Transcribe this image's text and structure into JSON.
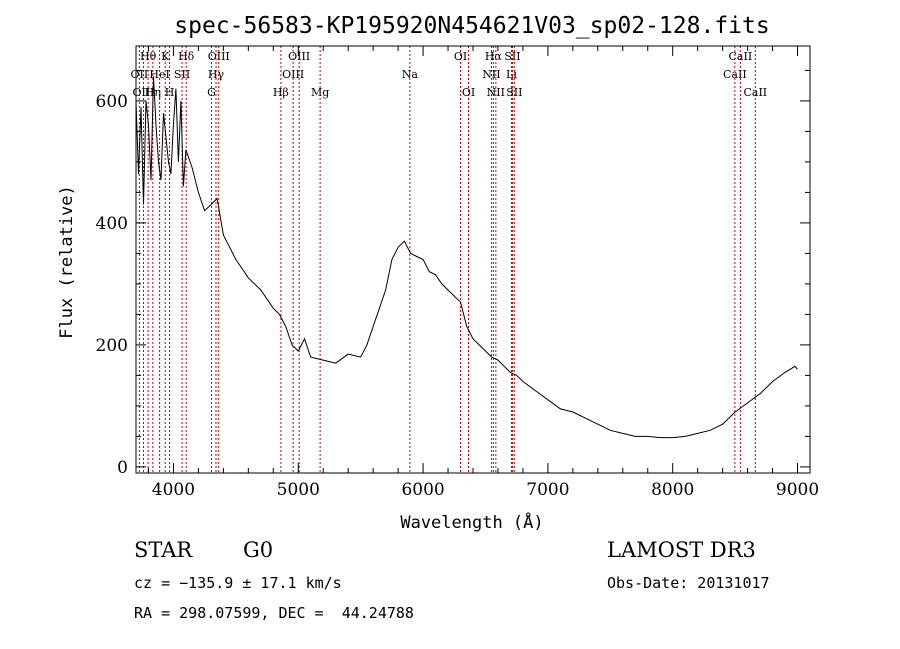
{
  "info": {
    "object_class": "STAR",
    "subclass": "G0",
    "survey": "LAMOST DR3",
    "velocity": "cz = −135.9 ± 17.1 km/s",
    "obs_date": "Obs-Date: 20131017",
    "coords": "RA = 298.07599, DEC =  44.24788"
  },
  "chart_data": {
    "type": "line",
    "title": "spec-56583-KP195920N454621V03_sp02-128.fits",
    "xlabel": "Wavelength (Å)",
    "ylabel": "Flux (relative)",
    "xlim": [
      3700,
      9100
    ],
    "ylim": [
      -10,
      690
    ],
    "x_ticks": [
      4000,
      5000,
      6000,
      7000,
      8000,
      9000
    ],
    "y_ticks": [
      0,
      200,
      400,
      600
    ],
    "grid": false,
    "line_color": "#000000",
    "marker_color": "#c00000",
    "series": [
      {
        "x": [
          3700,
          3720,
          3740,
          3760,
          3780,
          3800,
          3820,
          3840,
          3860,
          3880,
          3900,
          3920,
          3940,
          3960,
          3980,
          4000,
          4020,
          4040,
          4060,
          4080,
          4100,
          4150,
          4200,
          4250,
          4300,
          4350,
          4400,
          4500,
          4600,
          4700,
          4800,
          4850,
          4900,
          4950,
          5000,
          5050,
          5100,
          5200,
          5300,
          5400,
          5500,
          5550,
          5600,
          5650,
          5700,
          5750,
          5800,
          5850,
          5900,
          5950,
          6000,
          6050,
          6100,
          6150,
          6200,
          6250,
          6300,
          6350,
          6400,
          6450,
          6500,
          6550,
          6600,
          6650,
          6700,
          6750,
          6800,
          6900,
          7000,
          7100,
          7200,
          7300,
          7400,
          7500,
          7600,
          7700,
          7800,
          7900,
          8000,
          8100,
          8200,
          8300,
          8400,
          8500,
          8600,
          8700,
          8800,
          8900,
          8980,
          9000
        ],
        "y": [
          600,
          480,
          590,
          430,
          600,
          560,
          470,
          640,
          560,
          500,
          470,
          580,
          540,
          500,
          480,
          560,
          620,
          500,
          600,
          460,
          520,
          490,
          450,
          420,
          430,
          440,
          380,
          340,
          310,
          290,
          260,
          250,
          230,
          200,
          190,
          210,
          180,
          175,
          170,
          185,
          180,
          200,
          230,
          260,
          290,
          340,
          360,
          370,
          350,
          345,
          340,
          320,
          315,
          300,
          290,
          280,
          270,
          230,
          210,
          200,
          190,
          180,
          175,
          165,
          155,
          150,
          140,
          125,
          110,
          95,
          90,
          80,
          70,
          60,
          55,
          50,
          50,
          48,
          48,
          50,
          55,
          60,
          70,
          90,
          105,
          120,
          140,
          155,
          165,
          160
        ]
      }
    ],
    "line_markers": [
      {
        "label": "Hθ",
        "x": 3797,
        "row": 0
      },
      {
        "label": "OII",
        "x": 3727,
        "row": 1
      },
      {
        "label": "OIII",
        "x": 3760,
        "row": 2
      },
      {
        "label": "K",
        "x": 3934,
        "row": 0
      },
      {
        "label": "HeI",
        "x": 3889,
        "row": 1
      },
      {
        "label": "Hη",
        "x": 3835,
        "row": 2
      },
      {
        "label": "SII",
        "x": 4069,
        "row": 1
      },
      {
        "label": "H",
        "x": 3969,
        "row": 2
      },
      {
        "label": "Hδ",
        "x": 4102,
        "row": 0
      },
      {
        "label": "OIII",
        "x": 4363,
        "row": 0
      },
      {
        "label": "Hγ",
        "x": 4341,
        "row": 1
      },
      {
        "label": "G",
        "x": 4305,
        "row": 2
      },
      {
        "label": "OIII",
        "x": 5007,
        "row": 0
      },
      {
        "label": "OIII",
        "x": 4959,
        "row": 1
      },
      {
        "label": "Hβ",
        "x": 4861,
        "row": 2
      },
      {
        "label": "Mg",
        "x": 5175,
        "row": 2
      },
      {
        "label": "Na",
        "x": 5894,
        "row": 1
      },
      {
        "label": "OI",
        "x": 6300,
        "row": 0
      },
      {
        "label": "OI",
        "x": 6364,
        "row": 2
      },
      {
        "label": "Hα",
        "x": 6563,
        "row": 0
      },
      {
        "label": "NII",
        "x": 6548,
        "row": 1
      },
      {
        "label": "NII",
        "x": 6583,
        "row": 2
      },
      {
        "label": "SII",
        "x": 6716,
        "row": 0
      },
      {
        "label": "Li",
        "x": 6708,
        "row": 1
      },
      {
        "label": "SII",
        "x": 6731,
        "row": 2
      },
      {
        "label": "CaII",
        "x": 8542,
        "row": 0
      },
      {
        "label": "CaII",
        "x": 8498,
        "row": 1
      },
      {
        "label": "CaII",
        "x": 8662,
        "row": 2
      }
    ]
  }
}
